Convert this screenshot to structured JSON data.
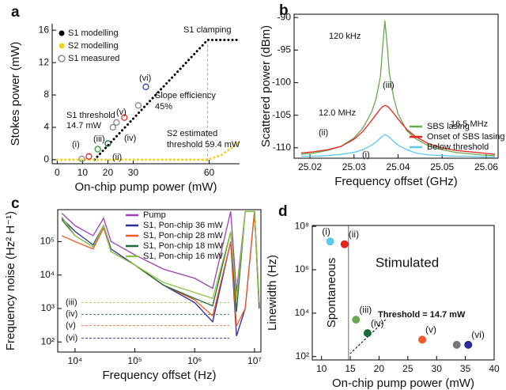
{
  "chart_data": [
    {
      "type": "line",
      "panel": "a",
      "xlabel": "On-chip pump power (mW)",
      "ylabel": "Stokes power (mW)",
      "xlim": [
        -2,
        72
      ],
      "xticks": [
        0,
        10,
        20,
        30,
        60
      ],
      "ylim": [
        -0.5,
        16.8
      ],
      "yticks": [
        0,
        4,
        8,
        12,
        16
      ],
      "legend": "upper left",
      "frame": false,
      "series": [
        {
          "name": "S1 modelling",
          "type": "line",
          "marker": "dot",
          "color": "#000000",
          "x": [
            14.7,
            59.4,
            72
          ],
          "values": [
            0,
            14.8,
            14.8
          ]
        },
        {
          "name": "S2 modelling",
          "type": "line",
          "marker": "dot",
          "color": "#f2d21a",
          "x": [
            0,
            59.4,
            65,
            72
          ],
          "values": [
            0,
            0,
            0.6,
            2.2
          ]
        },
        {
          "name": "S1 measured",
          "type": "scatter",
          "marker": "circle",
          "color": "#777777",
          "x": [
            9.7,
            12.5,
            16,
            20,
            22,
            23.4,
            26.5,
            32,
            35
          ],
          "values": [
            0.1,
            0.4,
            1.3,
            2.0,
            4.0,
            4.6,
            5.2,
            6.7,
            9.0
          ],
          "colors": [
            "#888888",
            "#e02020",
            "#3a9a3a",
            "#1a6b3a",
            "#888888",
            "#888888",
            "#e03020",
            "#888888",
            "#2040b0"
          ]
        }
      ],
      "annotations": [
        "S1 clamping",
        "Slope efficiency",
        "45%",
        "S1 threshold",
        "14.7 mW",
        "S2 estimated",
        "threshold 59.4 mW",
        "(i)",
        "(ii)",
        "(iii)",
        "(iv)",
        "(v)",
        "(vi)"
      ]
    },
    {
      "type": "line",
      "panel": "b",
      "xlabel": "Frequency offset (GHz)",
      "ylabel": "Scattered power (dBm)",
      "xlim": [
        25.0164,
        25.0627
      ],
      "xticks": [
        25.02,
        25.03,
        25.04,
        25.05,
        25.06
      ],
      "ylim": [
        -111.6,
        -89.5
      ],
      "yticks": [
        -90,
        -95,
        -100,
        -105,
        -110
      ],
      "legend": "lower right",
      "frame": true,
      "x": [
        25.018,
        25.021,
        25.024,
        25.027,
        25.03,
        25.032,
        25.034,
        25.035,
        25.036,
        25.0365,
        25.037,
        25.0375,
        25.038,
        25.039,
        25.04,
        25.042,
        25.044,
        25.047,
        25.05,
        25.053,
        25.056,
        25.059,
        25.062
      ],
      "series": [
        {
          "name": "SBS lasing",
          "color": "#6aa84f",
          "values": [
            -111.0,
            -110.8,
            -110.4,
            -109.8,
            -108.5,
            -107.0,
            -104.5,
            -102.5,
            -99.0,
            -94.5,
            -90.5,
            -94.0,
            -98.5,
            -102.3,
            -104.8,
            -107.4,
            -108.6,
            -109.7,
            -110.3,
            -110.7,
            -110.9,
            -111.1,
            -111.2
          ]
        },
        {
          "name": "Onset of SBS lasing",
          "color": "#e8231f",
          "values": [
            -110.8,
            -110.6,
            -110.3,
            -109.8,
            -108.7,
            -107.5,
            -105.8,
            -104.9,
            -104.0,
            -103.7,
            -103.5,
            -103.6,
            -103.9,
            -104.7,
            -105.6,
            -107.2,
            -108.3,
            -109.4,
            -110.0,
            -110.4,
            -110.6,
            -110.8,
            -111.0
          ]
        },
        {
          "name": "Below threshold",
          "color": "#5bc8ee",
          "values": [
            -111.3,
            -111.3,
            -111.2,
            -111.0,
            -110.7,
            -110.3,
            -109.6,
            -109.1,
            -108.5,
            -108.2,
            -108.0,
            -108.1,
            -108.4,
            -109.0,
            -109.6,
            -110.3,
            -110.8,
            -111.1,
            -111.2,
            -111.3,
            -111.3,
            -111.4,
            -111.4
          ]
        }
      ],
      "annotations": [
        "120 kHz",
        "12.0 MHz",
        "16.5 MHz",
        "(i)",
        "(ii)",
        "(iii)"
      ]
    },
    {
      "type": "line",
      "panel": "c",
      "xlabel": "Frequency offset (Hz)",
      "ylabel": "Frequency noise (Hz² H⁻¹)",
      "xlog": true,
      "ylog": true,
      "xlim": [
        5130,
        12800000
      ],
      "ylim": [
        50,
        900000
      ],
      "xticks": [
        {
          "value": 10000,
          "label": "10⁴"
        },
        {
          "value": 100000,
          "label": "10⁵"
        },
        {
          "value": 1000000,
          "label": "10⁶"
        },
        {
          "value": 10000000,
          "label": "10⁷"
        }
      ],
      "yticks": [
        {
          "value": 100,
          "label": "10²"
        },
        {
          "value": 1000,
          "label": "10³"
        },
        {
          "value": 10000,
          "label": "10⁴"
        },
        {
          "value": 100000,
          "label": "10⁵"
        }
      ],
      "legend": "upper right",
      "frame": true,
      "x": [
        6000,
        10000,
        20000,
        30000,
        40000,
        100000,
        300000,
        1000000,
        2000000,
        4000000,
        5000000,
        7000000,
        10000000,
        12000000
      ],
      "series": [
        {
          "name": "Pump",
          "color": "#9b3fb5",
          "values": [
            700000,
            300000,
            150000,
            500000,
            100000,
            40000,
            15000,
            8000,
            4000,
            800000,
            3000,
            800000,
            800000,
            1500
          ]
        },
        {
          "name": "S1, Pon-chip 36 mW",
          "color": "#2b2b9a",
          "values": [
            500000,
            200000,
            80000,
            300000,
            60000,
            20000,
            5000,
            1500,
            400,
            100000,
            150,
            1000,
            800000,
            1000
          ]
        },
        {
          "name": "S1, Pon-chip 28 mW",
          "color": "#f05a28",
          "values": [
            150000,
            100000,
            60000,
            250000,
            50000,
            20000,
            5000,
            1800,
            600,
            100000,
            300,
            1000,
            800000,
            1000
          ]
        },
        {
          "name": "S1, Pon-chip 18 mW",
          "color": "#1a6b3a",
          "values": [
            450000,
            150000,
            70000,
            300000,
            50000,
            20000,
            5000,
            2000,
            1200,
            200000,
            800,
            800000,
            800000,
            1000
          ]
        },
        {
          "name": "S1, Pon-chip 16 mW",
          "color": "#8dc63f",
          "values": [
            550000,
            150000,
            70000,
            300000,
            50000,
            20000,
            6000,
            3000,
            2000,
            200000,
            1800,
            800000,
            800000,
            1500
          ]
        }
      ],
      "levels": [
        {
          "label": "(iii)",
          "value": 1500,
          "color": "#8dc63f"
        },
        {
          "label": "(iv)",
          "value": 670,
          "color": "#1a6b3a"
        },
        {
          "label": "(v)",
          "value": 310,
          "color": "#f05a28"
        },
        {
          "label": "(vi)",
          "value": 130,
          "color": "#2b2b9a"
        }
      ]
    },
    {
      "type": "scatter",
      "panel": "d",
      "xlabel": "On-chip pump power (mW)",
      "ylabel": "Linewidth (Hz)",
      "ylog": true,
      "xlim": [
        8.4,
        40
      ],
      "xticks": [
        10,
        15,
        20,
        25,
        30,
        35,
        40
      ],
      "ylim": [
        70,
        110000000
      ],
      "yticks": [
        {
          "value": 100,
          "label": "10²"
        },
        {
          "value": 10000,
          "label": "10⁴"
        },
        {
          "value": 1000000,
          "label": "10⁶"
        },
        {
          "value": 100000000,
          "label": "10⁸"
        }
      ],
      "frame": true,
      "threshold_x": 14.7,
      "series": [
        {
          "type": "scatter",
          "x": [
            11.5,
            14,
            16,
            18,
            27.5,
            33.5,
            35.5
          ],
          "values": [
            20000000,
            15000000,
            5000,
            1200,
            600,
            350,
            350
          ],
          "colors": [
            "#5bc8ee",
            "#e8231f",
            "#6aa84f",
            "#1a6b3a",
            "#f05a28",
            "#777777",
            "#2b2b9a"
          ],
          "point_labels": [
            "(i)",
            "(ii)",
            "(iii)",
            "(iv)",
            "(v)",
            null,
            "(vi)"
          ]
        }
      ],
      "annotations": [
        "Stimulated",
        "Spontaneous",
        "Threshold = 14.7 mW"
      ]
    }
  ]
}
